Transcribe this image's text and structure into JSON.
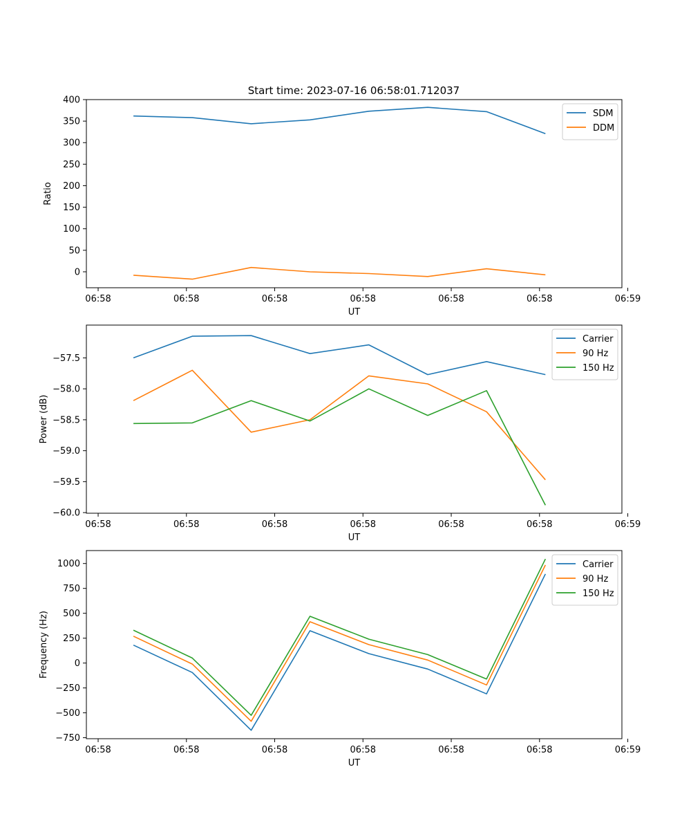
{
  "figure": {
    "title": "Start time: 2023-07-16 06:58:01.712037"
  },
  "colors": {
    "c0": "#1f77b4",
    "c1": "#ff7f0e",
    "c2": "#2ca02c",
    "axis": "#000000",
    "background": "#ffffff"
  },
  "chart_data": [
    {
      "type": "line",
      "title": "Start time: 2023-07-16 06:58:01.712037",
      "xlabel": "UT",
      "ylabel": "Ratio",
      "x": [
        1,
        2,
        3,
        4,
        5,
        6,
        7,
        8
      ],
      "xlim": [
        0.2,
        9.3
      ],
      "x_ticks": [
        0.4,
        1.9,
        3.4,
        4.9,
        6.4,
        7.9,
        9.4
      ],
      "x_tick_labels": [
        "06:58",
        "06:58",
        "06:58",
        "06:58",
        "06:58",
        "06:58",
        "06:59"
      ],
      "ylim": [
        -37,
        400
      ],
      "y_ticks": [
        0,
        50,
        100,
        150,
        200,
        250,
        300,
        350,
        400
      ],
      "y_tick_labels": [
        "0",
        "50",
        "100",
        "150",
        "200",
        "250",
        "300",
        "350",
        "400"
      ],
      "legend_position": "top-right",
      "series": [
        {
          "name": "SDM",
          "color": "#1f77b4",
          "values": [
            362,
            358,
            344,
            353,
            373,
            382,
            372,
            321
          ]
        },
        {
          "name": "DDM",
          "color": "#ff7f0e",
          "values": [
            -8,
            -17,
            10,
            0,
            -4,
            -11,
            7,
            -7
          ]
        }
      ]
    },
    {
      "type": "line",
      "title": "",
      "xlabel": "UT",
      "ylabel": "Power (dB)",
      "x": [
        1,
        2,
        3,
        4,
        5,
        6,
        7,
        8
      ],
      "xlim": [
        0.2,
        9.3
      ],
      "x_ticks": [
        0.4,
        1.9,
        3.4,
        4.9,
        6.4,
        7.9,
        9.4
      ],
      "x_tick_labels": [
        "06:58",
        "06:58",
        "06:58",
        "06:58",
        "06:58",
        "06:58",
        "06:59"
      ],
      "ylim": [
        -60.01,
        -56.97
      ],
      "y_ticks": [
        -60.0,
        -59.5,
        -59.0,
        -58.5,
        -58.0,
        -57.5
      ],
      "y_tick_labels": [
        "−60.0",
        "−59.5",
        "−59.0",
        "−58.5",
        "−58.0",
        "−57.5"
      ],
      "legend_position": "top-right",
      "series": [
        {
          "name": "Carrier",
          "color": "#1f77b4",
          "values": [
            -57.5,
            -57.15,
            -57.14,
            -57.43,
            -57.29,
            -57.77,
            -57.56,
            -57.77
          ]
        },
        {
          "name": "90 Hz",
          "color": "#ff7f0e",
          "values": [
            -58.19,
            -57.7,
            -58.7,
            -58.5,
            -57.79,
            -57.92,
            -58.37,
            -59.47
          ]
        },
        {
          "name": "150 Hz",
          "color": "#2ca02c",
          "values": [
            -58.56,
            -58.55,
            -58.19,
            -58.52,
            -58.0,
            -58.43,
            -58.03,
            -59.88
          ]
        }
      ]
    },
    {
      "type": "line",
      "title": "",
      "xlabel": "UT",
      "ylabel": "Frequency (Hz)",
      "x": [
        1,
        2,
        3,
        4,
        5,
        6,
        7,
        8
      ],
      "xlim": [
        0.2,
        9.3
      ],
      "x_ticks": [
        0.4,
        1.9,
        3.4,
        4.9,
        6.4,
        7.9,
        9.4
      ],
      "x_tick_labels": [
        "06:58",
        "06:58",
        "06:58",
        "06:58",
        "06:58",
        "06:58",
        "06:59"
      ],
      "ylim": [
        -760,
        1130
      ],
      "y_ticks": [
        -750,
        -500,
        -250,
        0,
        250,
        500,
        750,
        1000
      ],
      "y_tick_labels": [
        "−750",
        "−500",
        "−250",
        "0",
        "250",
        "500",
        "750",
        "1000"
      ],
      "legend_position": "top-right",
      "series": [
        {
          "name": "Carrier",
          "color": "#1f77b4",
          "values": [
            180,
            -95,
            -675,
            325,
            95,
            -60,
            -310,
            895
          ]
        },
        {
          "name": "90 Hz",
          "color": "#ff7f0e",
          "values": [
            270,
            -10,
            -585,
            415,
            185,
            30,
            -220,
            985
          ]
        },
        {
          "name": "150 Hz",
          "color": "#2ca02c",
          "values": [
            330,
            50,
            -525,
            470,
            240,
            85,
            -160,
            1045
          ]
        }
      ]
    }
  ]
}
